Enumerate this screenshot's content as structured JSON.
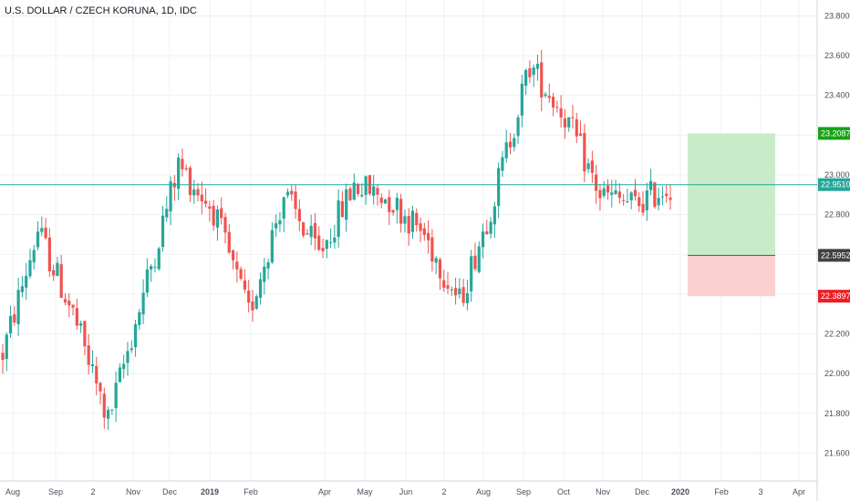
{
  "title": "U.S. DOLLAR / CZECH KORUNA, 1D, IDC",
  "colors": {
    "up": "#26a69a",
    "down": "#ef5350",
    "grid": "#eef0f4",
    "last_price_line": "#26a69a",
    "target_zone": "#c8ecc8",
    "stop_zone": "#fbd0d0",
    "target_badge": "#18a317",
    "stop_badge": "#ee1d24",
    "entry_badge": "#424242",
    "last_badge": "#26a69a"
  },
  "chart_data": {
    "type": "candlestick",
    "symbol": "U.S. DOLLAR / CZECH KORUNA",
    "interval": "1D",
    "source": "IDC",
    "y_ticks": [
      21.6,
      21.8,
      22.0,
      22.2,
      22.4,
      22.6,
      22.8,
      23.0,
      23.2,
      23.4,
      23.6,
      23.8
    ],
    "y_tick_labels": [
      "21.6000",
      "21.8000",
      "22.0000",
      "22.2000",
      "22.4000",
      "22.6000",
      "22.8000",
      "23.0000",
      "23.2000",
      "23.4000",
      "23.6000",
      "23.8000"
    ],
    "ylim": [
      21.46,
      23.88
    ],
    "x_labels": [
      "Aug",
      "Sep",
      "2",
      "Nov",
      "Dec",
      "2019",
      "Feb",
      "Apr",
      "May",
      "Jun",
      "2",
      "Aug",
      "Sep",
      "Oct",
      "Nov",
      "Dec",
      "2020",
      "Feb",
      "3",
      "Apr"
    ],
    "x_bold_labels": [
      "2019",
      "2020"
    ],
    "approx_close_path": [
      {
        "t": "2018-07",
        "close": 22.1
      },
      {
        "t": "2018-07-end",
        "close": 22.72
      },
      {
        "t": "2018-08",
        "close": 22.3
      },
      {
        "t": "2018-09",
        "close": 21.76
      },
      {
        "t": "2018-10",
        "close": 22.4
      },
      {
        "t": "2018-11",
        "close": 23.05
      },
      {
        "t": "2018-12",
        "close": 22.82
      },
      {
        "t": "2019-01",
        "close": 22.3
      },
      {
        "t": "2019-02",
        "close": 22.9
      },
      {
        "t": "2019-03",
        "close": 22.6
      },
      {
        "t": "2019-04",
        "close": 22.95
      },
      {
        "t": "2019-05",
        "close": 22.88
      },
      {
        "t": "2019-06",
        "close": 22.7
      },
      {
        "t": "2019-07",
        "close": 22.36
      },
      {
        "t": "2019-08",
        "close": 22.9
      },
      {
        "t": "2019-09",
        "close": 23.55
      },
      {
        "t": "2019-10",
        "close": 23.3
      },
      {
        "t": "2019-11",
        "close": 22.9
      },
      {
        "t": "2019-12",
        "close": 22.85
      },
      {
        "t": "2019-12-end",
        "close": 22.95
      }
    ],
    "last_price": 22.951,
    "position_tool": {
      "target": 23.2087,
      "entry": 22.5952,
      "stop": 22.3897
    },
    "price_badges": [
      {
        "label": "23.2087",
        "value": 23.2087,
        "kind": "target"
      },
      {
        "label": "22.9510",
        "value": 22.951,
        "kind": "last"
      },
      {
        "label": "22.5952",
        "value": 22.5952,
        "kind": "entry"
      },
      {
        "label": "22.3897",
        "value": 22.3897,
        "kind": "stop"
      }
    ],
    "grid": true
  }
}
